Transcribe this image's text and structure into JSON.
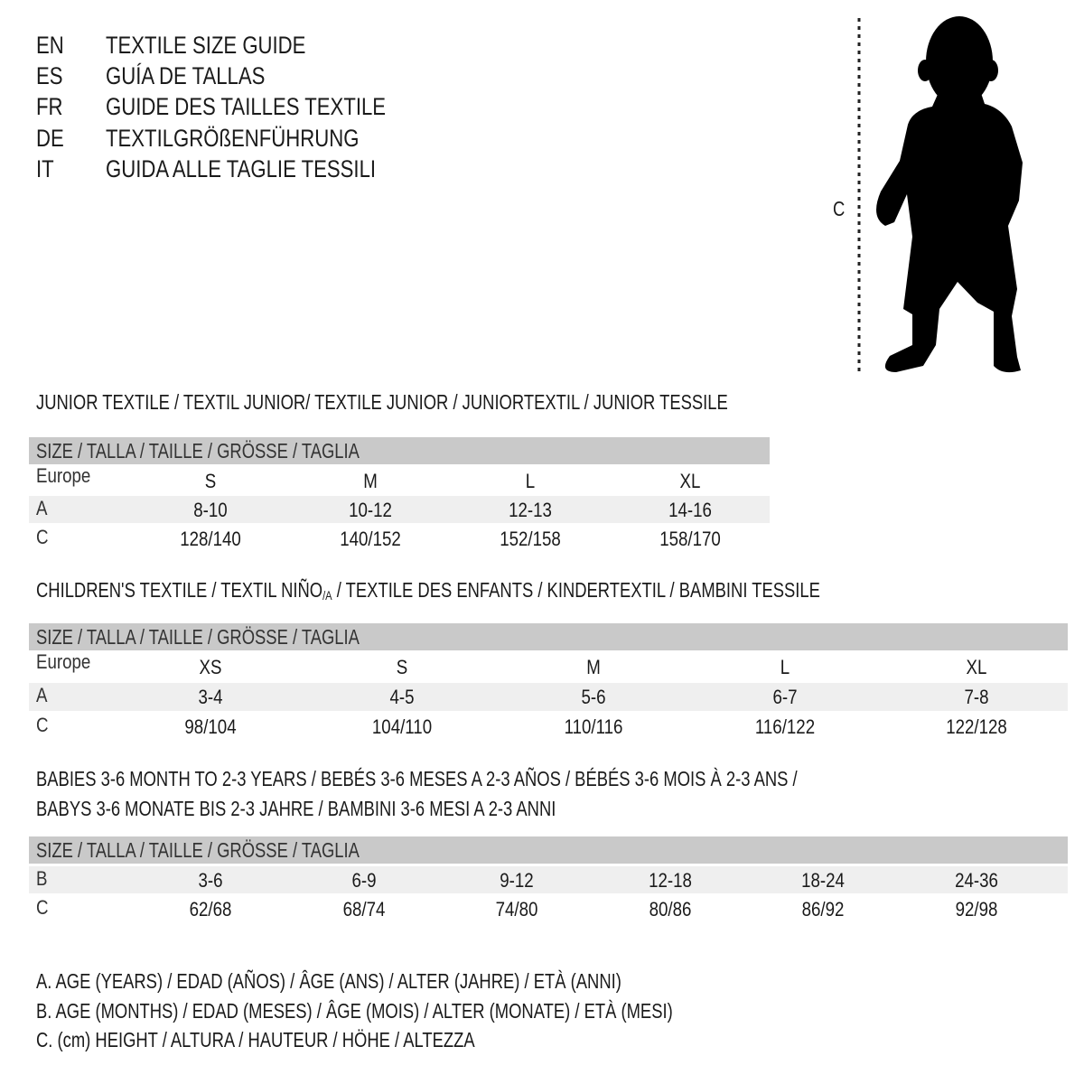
{
  "languages": [
    {
      "code": "EN",
      "title": "TEXTILE SIZE GUIDE"
    },
    {
      "code": "ES",
      "title": "GUÍA DE TALLAS"
    },
    {
      "code": "FR",
      "title": "GUIDE DES TAILLES TEXTILE"
    },
    {
      "code": "DE",
      "title": "TEXTILGRÖßENFÜHRUNG"
    },
    {
      "code": "IT",
      "title": "GUIDA ALLE TAGLIE TESSILI"
    }
  ],
  "figure": {
    "measure_label": "C",
    "icon": "child-silhouette-icon"
  },
  "size_header": "SIZE / TALLA / TAILLE / GRÖSSE / TAGLIA",
  "colors": {
    "header_band": "#c9c9c9",
    "shaded_row": "#efefef"
  },
  "junior": {
    "title": "JUNIOR TEXTILE / TEXTIL JUNIOR/ TEXTILE JUNIOR / JUNIORTEXTIL / JUNIOR TESSILE",
    "rows": [
      {
        "label": "Europe",
        "values": [
          "S",
          "M",
          "L",
          "XL"
        ]
      },
      {
        "label": "A",
        "values": [
          "8-10",
          "10-12",
          "12-13",
          "14-16"
        ]
      },
      {
        "label": "C",
        "values": [
          "128/140",
          "140/152",
          "152/158",
          "158/170"
        ]
      }
    ]
  },
  "children": {
    "title_a": "CHILDREN'S TEXTILE / TEXTIL NIÑO",
    "title_sub": "/A",
    "title_b": " / TEXTILE DES ENFANTS / KINDERTEXTIL / BAMBINI TESSILE",
    "rows": [
      {
        "label": "Europe",
        "values": [
          "XS",
          "S",
          "M",
          "L",
          "XL"
        ]
      },
      {
        "label": "A",
        "values": [
          "3-4",
          "4-5",
          "5-6",
          "6-7",
          "7-8"
        ]
      },
      {
        "label": "C",
        "values": [
          "98/104",
          "104/110",
          "110/116",
          "116/122",
          "122/128"
        ]
      }
    ]
  },
  "babies": {
    "title_line1": "BABIES 3-6 MONTH TO 2-3 YEARS / BEBÉS 3-6 MESES A 2-3 AÑOS / BÉBÉS 3-6 MOIS À 2-3 ANS /",
    "title_line2": "BABYS 3-6 MONATE BIS 2-3 JAHRE / BAMBINI 3-6 MESI A 2-3 ANNI",
    "rows": [
      {
        "label": "B",
        "values": [
          "3-6",
          "6-9",
          "9-12",
          "12-18",
          "18-24",
          "24-36"
        ]
      },
      {
        "label": "C",
        "values": [
          "62/68",
          "68/74",
          "74/80",
          "80/86",
          "86/92",
          "92/98"
        ]
      }
    ]
  },
  "legend": [
    "A. AGE (YEARS) / EDAD (AÑOS) / ÂGE (ANS) / ALTER (JAHRE) / ETÀ (ANNI)",
    "B. AGE (MONTHS) / EDAD (MESES) / ÂGE (MOIS) / ALTER (MONATE) / ETÀ (MESI)",
    "C. (cm) HEIGHT / ALTURA / HAUTEUR / HÖHE / ALTEZZA"
  ]
}
